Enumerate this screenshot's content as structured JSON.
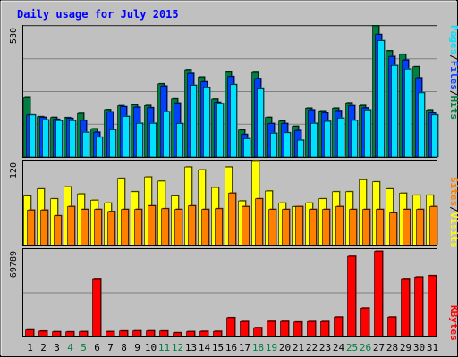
{
  "chart_data": [
    {
      "type": "bar",
      "title": "Daily usage for July 2015",
      "categories": [
        "1",
        "2",
        "3",
        "4",
        "5",
        "6",
        "7",
        "8",
        "9",
        "10",
        "11",
        "12",
        "13",
        "14",
        "15",
        "16",
        "17",
        "18",
        "19",
        "20",
        "21",
        "22",
        "23",
        "24",
        "25",
        "26",
        "27",
        "28",
        "29",
        "30",
        "31"
      ],
      "weekend_days": [
        "4",
        "5",
        "11",
        "12",
        "18",
        "19",
        "25",
        "26"
      ],
      "ylim": [
        0,
        530
      ],
      "y_tick_label": "530",
      "legend": [
        "Pages",
        "Files",
        "Hits"
      ],
      "series": [
        {
          "name": "Hits",
          "color": "#008040",
          "values": [
            240,
            163,
            160,
            159,
            176,
            114,
            191,
            207,
            211,
            208,
            296,
            235,
            353,
            323,
            234,
            343,
            109,
            342,
            160,
            145,
            124,
            197,
            186,
            197,
            219,
            208,
            530,
            429,
            415,
            365,
            190
          ]
        },
        {
          "name": "Files",
          "color": "#0040ff",
          "values": [
            170,
            160,
            152,
            156,
            148,
            100,
            182,
            203,
            201,
            199,
            287,
            218,
            338,
            304,
            221,
            325,
            91,
            317,
            135,
            135,
            107,
            190,
            178,
            187,
            207,
            198,
            495,
            406,
            392,
            320,
            178
          ]
        },
        {
          "name": "Pages",
          "color": "#00e0ff",
          "values": [
            170,
            150,
            147,
            147,
            100,
            80,
            110,
            164,
            136,
            136,
            183,
            135,
            290,
            280,
            216,
            293,
            74,
            275,
            96,
            98,
            68,
            136,
            144,
            157,
            148,
            190,
            470,
            370,
            356,
            260,
            170
          ]
        }
      ]
    },
    {
      "type": "bar",
      "ylim": [
        0,
        120
      ],
      "y_tick_label": "120",
      "legend": [
        "Sites",
        "Visits"
      ],
      "series": [
        {
          "name": "Visits",
          "color": "#ffff00",
          "values": [
            70,
            80,
            66,
            83,
            73,
            64,
            60,
            95,
            76,
            97,
            91,
            70,
            111,
            107,
            82,
            111,
            63,
            120,
            77,
            60,
            55,
            60,
            66,
            76,
            76,
            93,
            90,
            80,
            74,
            71,
            71
          ]
        },
        {
          "name": "Sites",
          "color": "#ff8000",
          "values": [
            50,
            50,
            42,
            55,
            51,
            51,
            48,
            51,
            51,
            56,
            52,
            51,
            56,
            51,
            52,
            74,
            55,
            66,
            51,
            51,
            55,
            51,
            51,
            55,
            51,
            51,
            51,
            46,
            51,
            51,
            55
          ]
        }
      ]
    },
    {
      "type": "bar",
      "ylim": [
        0,
        69789
      ],
      "y_tick_label": "69789",
      "legend": [
        "KBytes"
      ],
      "series": [
        {
          "name": "KBytes",
          "color": "#ff0000",
          "values": [
            5200,
            4300,
            3800,
            3700,
            3900,
            45500,
            3900,
            4400,
            4500,
            4500,
            4400,
            3000,
            3900,
            4100,
            4100,
            15000,
            11900,
            7000,
            12000,
            12000,
            11500,
            11900,
            11900,
            15500,
            64000,
            22600,
            68000,
            15500,
            45500,
            47500,
            48500
          ]
        }
      ]
    }
  ]
}
